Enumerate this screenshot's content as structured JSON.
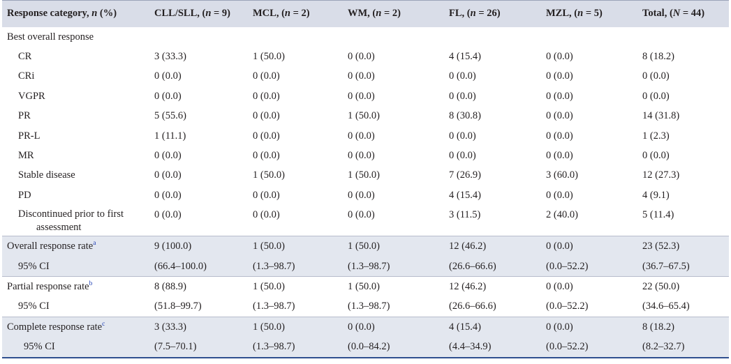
{
  "header": {
    "col0": "Response category, ",
    "col0_n": "n",
    "col0_rest": " (%)",
    "cols": [
      {
        "name": "CLL/SLL, (",
        "var": "n",
        "rest": " = 9)"
      },
      {
        "name": "MCL, (",
        "var": "n",
        "rest": " = 2)"
      },
      {
        "name": "WM, (",
        "var": "n",
        "rest": " = 2)"
      },
      {
        "name": "FL, (",
        "var": "n",
        "rest": " = 26)"
      },
      {
        "name": "MZL, (",
        "var": "n",
        "rest": " = 5)"
      },
      {
        "name": "Total, (",
        "var": "N",
        "rest": " = 44)"
      }
    ]
  },
  "best_overall": "Best overall response",
  "rows": {
    "cr": {
      "label": "CR",
      "v": [
        "3 (33.3)",
        "1 (50.0)",
        "0 (0.0)",
        "4 (15.4)",
        "0 (0.0)",
        "8 (18.2)"
      ]
    },
    "cri": {
      "label": "CRi",
      "v": [
        "0 (0.0)",
        "0 (0.0)",
        "0 (0.0)",
        "0 (0.0)",
        "0 (0.0)",
        "0 (0.0)"
      ]
    },
    "vgpr": {
      "label": "VGPR",
      "v": [
        "0 (0.0)",
        "0 (0.0)",
        "0 (0.0)",
        "0 (0.0)",
        "0 (0.0)",
        "0 (0.0)"
      ]
    },
    "pr": {
      "label": "PR",
      "v": [
        "5 (55.6)",
        "0 (0.0)",
        "1 (50.0)",
        "8 (30.8)",
        "0 (0.0)",
        "14 (31.8)"
      ]
    },
    "prl": {
      "label": "PR-L",
      "v": [
        "1 (11.1)",
        "0 (0.0)",
        "0 (0.0)",
        "0 (0.0)",
        "0 (0.0)",
        "1 (2.3)"
      ]
    },
    "mr": {
      "label": "MR",
      "v": [
        "0 (0.0)",
        "0 (0.0)",
        "0 (0.0)",
        "0 (0.0)",
        "0 (0.0)",
        "0 (0.0)"
      ]
    },
    "sd": {
      "label": "Stable disease",
      "v": [
        "0 (0.0)",
        "1 (50.0)",
        "1 (50.0)",
        "7 (26.9)",
        "3 (60.0)",
        "12 (27.3)"
      ]
    },
    "pd": {
      "label": "PD",
      "v": [
        "0 (0.0)",
        "0 (0.0)",
        "0 (0.0)",
        "4 (15.4)",
        "0 (0.0)",
        "4 (9.1)"
      ]
    },
    "disc": {
      "label": "Discontinued prior to first",
      "label2": "assessment",
      "v": [
        "0 (0.0)",
        "0 (0.0)",
        "0 (0.0)",
        "3 (11.5)",
        "2 (40.0)",
        "5 (11.4)"
      ]
    },
    "orr": {
      "label": "Overall response rate",
      "sup": "a",
      "v": [
        "9 (100.0)",
        "1 (50.0)",
        "1 (50.0)",
        "12 (46.2)",
        "0 (0.0)",
        "23 (52.3)"
      ]
    },
    "orr_ci": {
      "label": "95% CI",
      "v": [
        "(66.4–100.0)",
        "(1.3–98.7)",
        "(1.3–98.7)",
        "(26.6–66.6)",
        "(0.0–52.2)",
        "(36.7–67.5)"
      ]
    },
    "prr": {
      "label": "Partial response rate",
      "sup": "b",
      "v": [
        "8 (88.9)",
        "1 (50.0)",
        "1 (50.0)",
        "12 (46.2)",
        "0 (0.0)",
        "22 (50.0)"
      ]
    },
    "prr_ci": {
      "label": "95% CI",
      "v": [
        "(51.8–99.7)",
        "(1.3–98.7)",
        "(1.3–98.7)",
        "(26.6–66.6)",
        "(0.0–52.2)",
        "(34.6–65.4)"
      ]
    },
    "crr": {
      "label": "Complete response rate",
      "sup": "c",
      "v": [
        "3 (33.3)",
        "1 (50.0)",
        "0 (0.0)",
        "4 (15.4)",
        "0 (0.0)",
        "8 (18.2)"
      ]
    },
    "crr_ci": {
      "label": "95% CI",
      "v": [
        "(7.5–70.1)",
        "(1.3–98.7)",
        "(0.0–84.2)",
        "(4.4–34.9)",
        "(0.0–52.2)",
        "(8.2–32.7)"
      ]
    }
  }
}
